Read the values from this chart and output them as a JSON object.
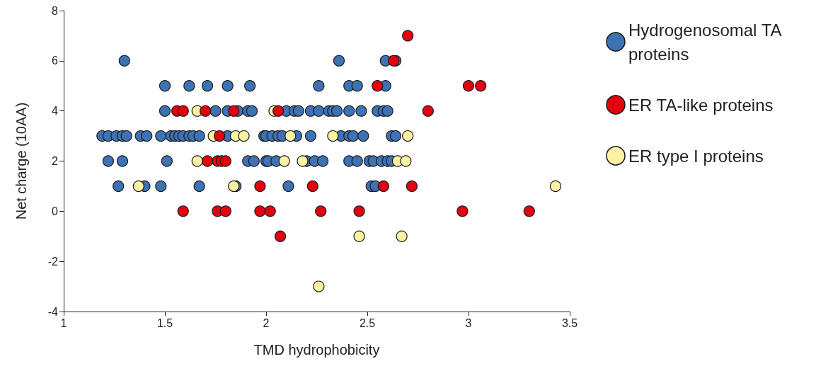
{
  "chart_data": {
    "type": "scatter",
    "xlabel": "TMD hydrophobicity",
    "ylabel": "Net charge (10AA)",
    "xlim": [
      1,
      3.5
    ],
    "xticks": [
      1,
      1.5,
      2,
      2.5,
      3,
      3.5
    ],
    "ylim": [
      -4,
      8
    ],
    "yticks": [
      -4,
      -2,
      0,
      2,
      4,
      6,
      8
    ],
    "grid": false,
    "legend": "right",
    "marker": "circle",
    "series": [
      {
        "name": "Hydrogenosomal TA proteins",
        "color": "#3d72b4",
        "x": [
          1.3,
          2.36,
          2.59,
          2.64,
          1.5,
          1.62,
          1.71,
          1.81,
          1.92,
          2.26,
          2.41,
          2.45,
          2.59,
          1.5,
          1.75,
          1.81,
          1.86,
          1.91,
          1.93,
          2.1,
          2.14,
          2.16,
          2.22,
          2.26,
          2.31,
          2.33,
          2.35,
          2.41,
          2.47,
          2.55,
          2.58,
          2.6,
          1.19,
          1.22,
          1.26,
          1.29,
          1.31,
          1.38,
          1.41,
          1.48,
          1.53,
          1.55,
          1.57,
          1.59,
          1.62,
          1.64,
          1.67,
          1.81,
          1.99,
          2.0,
          2.03,
          2.06,
          2.08,
          2.15,
          2.22,
          2.37,
          2.41,
          2.43,
          2.48,
          2.62,
          2.64,
          1.22,
          1.29,
          1.51,
          1.91,
          1.94,
          2.0,
          2.01,
          2.05,
          2.2,
          2.24,
          2.28,
          2.41,
          2.45,
          2.51,
          2.53,
          2.57,
          2.6,
          2.62,
          1.27,
          1.4,
          1.48,
          1.67,
          1.85,
          2.11,
          2.52,
          2.54
        ],
        "values": [
          6,
          6,
          6,
          6,
          5,
          5,
          5,
          5,
          5,
          5,
          5,
          5,
          5,
          4,
          4,
          4,
          4,
          4,
          4,
          4,
          4,
          4,
          4,
          4,
          4,
          4,
          4,
          4,
          4,
          4,
          4,
          4,
          3,
          3,
          3,
          3,
          3,
          3,
          3,
          3,
          3,
          3,
          3,
          3,
          3,
          3,
          3,
          3,
          3,
          3,
          3,
          3,
          3,
          3,
          3,
          3,
          3,
          3,
          3,
          3,
          3,
          2,
          2,
          2,
          2,
          2,
          2,
          2,
          2,
          2,
          2,
          2,
          2,
          2,
          2,
          2,
          2,
          2,
          2,
          1,
          1,
          1,
          1,
          1,
          1,
          1,
          1
        ]
      },
      {
        "name": "ER TA-like proteins",
        "color": "#e3000f",
        "x": [
          2.7,
          2.63,
          2.55,
          3.0,
          3.06,
          1.56,
          1.59,
          1.7,
          1.84,
          2.06,
          2.8,
          1.77,
          1.71,
          1.76,
          1.78,
          1.8,
          1.97,
          2.23,
          2.58,
          2.72,
          1.59,
          1.76,
          1.8,
          1.97,
          2.02,
          2.27,
          2.46,
          2.97,
          3.3,
          2.07
        ],
        "values": [
          7,
          6,
          5,
          5,
          5,
          4,
          4,
          4,
          4,
          4,
          4,
          3,
          2,
          2,
          2,
          2,
          1,
          1,
          1,
          1,
          0,
          0,
          0,
          0,
          0,
          0,
          0,
          0,
          0,
          -1
        ]
      },
      {
        "name": "ER type I proteins",
        "color": "#fdf1a3",
        "x": [
          1.66,
          2.04,
          1.74,
          1.85,
          1.89,
          2.12,
          2.33,
          2.7,
          1.66,
          2.09,
          2.18,
          2.65,
          2.69,
          1.37,
          1.84,
          3.43,
          2.46,
          2.67,
          2.26
        ],
        "values": [
          4,
          4,
          3,
          3,
          3,
          3,
          3,
          3,
          2,
          2,
          2,
          2,
          2,
          1,
          1,
          1,
          -1,
          -1,
          -3
        ]
      }
    ]
  }
}
